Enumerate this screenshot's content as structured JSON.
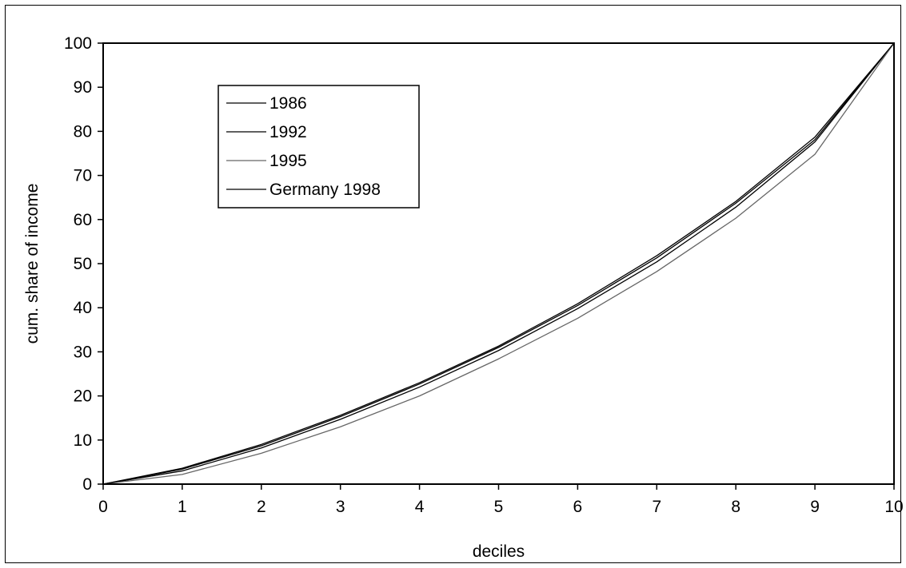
{
  "chart_data": {
    "type": "line",
    "title": "",
    "xlabel": "deciles",
    "ylabel": "cum. share of income",
    "xlim": [
      0,
      10
    ],
    "ylim": [
      0,
      100
    ],
    "x_ticks": [
      "0",
      "1",
      "2",
      "3",
      "4",
      "5",
      "6",
      "7",
      "8",
      "9",
      "10"
    ],
    "y_ticks": [
      "0",
      "10",
      "20",
      "30",
      "40",
      "50",
      "60",
      "70",
      "80",
      "90",
      "100"
    ],
    "x": [
      0,
      1,
      2,
      3,
      4,
      5,
      6,
      7,
      8,
      9,
      10
    ],
    "grid": false,
    "legend_position": "top-left",
    "series": [
      {
        "name": "1986",
        "color": "#000000",
        "values": [
          0,
          3.4,
          8.7,
          15.3,
          22.7,
          31.0,
          40.5,
          51.3,
          63.7,
          78.1,
          100
        ]
      },
      {
        "name": "1992",
        "color": "#000000",
        "values": [
          0,
          3.0,
          8.2,
          14.7,
          22.0,
          30.3,
          39.8,
          50.4,
          62.8,
          77.6,
          100
        ]
      },
      {
        "name": "1995",
        "color": "#666666",
        "values": [
          0,
          2.2,
          7.0,
          13.0,
          20.0,
          28.4,
          37.6,
          48.2,
          60.3,
          74.8,
          100
        ]
      },
      {
        "name": "Germany 1998",
        "color": "#000000",
        "values": [
          0,
          3.6,
          9.0,
          15.6,
          23.0,
          31.3,
          40.9,
          51.8,
          64.1,
          78.7,
          100
        ]
      }
    ]
  }
}
